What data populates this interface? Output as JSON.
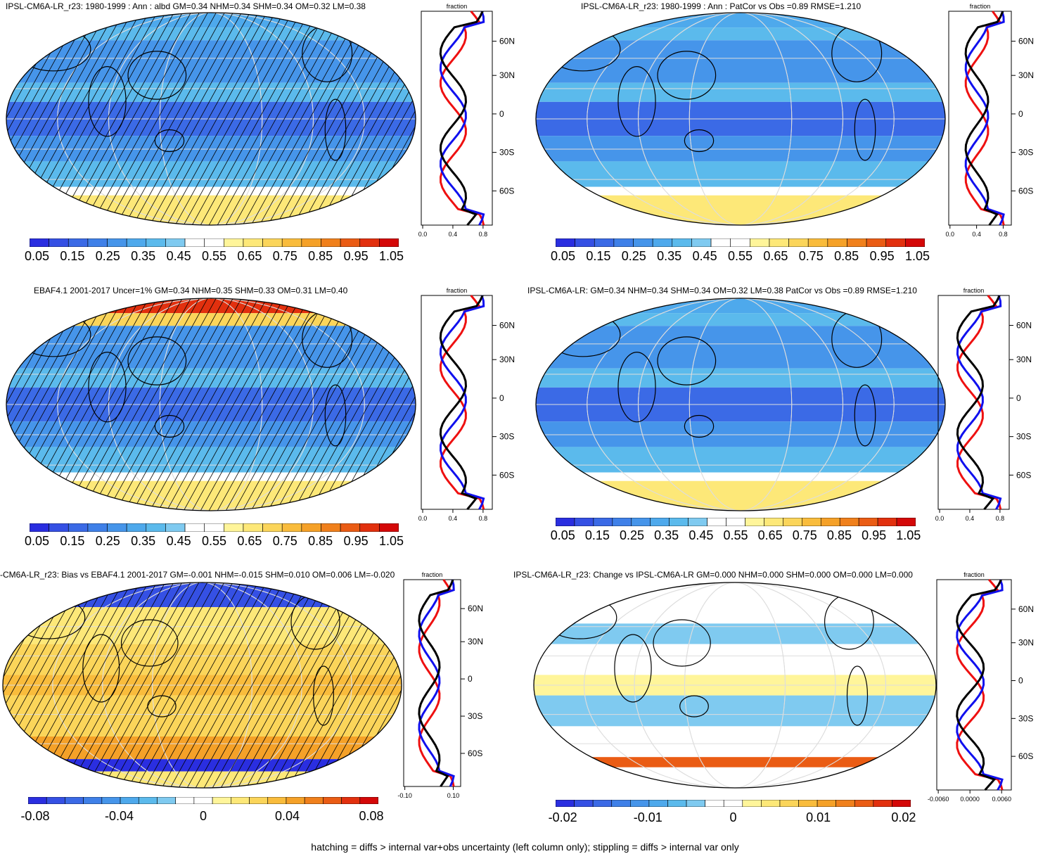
{
  "palette_abs": [
    "#2a2ee0",
    "#3550e4",
    "#3b6ae6",
    "#3f80e8",
    "#4695ea",
    "#4ea9ec",
    "#5bbaec",
    "#7fcaf0",
    "#ffffff",
    "#ffffff",
    "#fff59a",
    "#fde878",
    "#fbd55a",
    "#f9bc3c",
    "#f5a128",
    "#f0801c",
    "#ea5c14",
    "#e2300e",
    "#d40808"
  ],
  "palette_diff": [
    "#2a2ee0",
    "#3550e4",
    "#3b6ae6",
    "#3f80e8",
    "#4695ea",
    "#4ea9ec",
    "#5bbaec",
    "#7fcaf0",
    "#ffffff",
    "#ffffff",
    "#fff59a",
    "#fde878",
    "#fbd55a",
    "#f9bc3c",
    "#f5a128",
    "#f0801c",
    "#ea5c14",
    "#e2300e",
    "#d40808"
  ],
  "profile_colors": {
    "obs": "#000000",
    "model": "#1010ee",
    "other": "#ee1010"
  },
  "profile_axis_title": "fraction",
  "lat_labels": [
    "60N",
    "30N",
    "0",
    "30S",
    "60S"
  ],
  "panels": [
    {
      "id": "p1",
      "title": "IPSL-CM6A-LR_r23: 1980-1999 : Ann : albd GM=0.34 NHM=0.34 SHM=0.34 OM=0.32 LM=0.38",
      "cbar_labels": [
        "0.05",
        "0.15",
        "0.25",
        "0.35",
        "0.45",
        "0.55",
        "0.65",
        "0.75",
        "0.85",
        "0.95",
        "1.05"
      ],
      "x_ticks": [
        "0.0",
        "0.4",
        "0.8"
      ],
      "hatched": true,
      "kind": "abs"
    },
    {
      "id": "p2",
      "title": "IPSL-CM6A-LR_r23: 1980-1999 : Ann : PatCor vs Obs =0.89 RMSE=1.210",
      "cbar_labels": [
        "0.05",
        "0.15",
        "0.25",
        "0.35",
        "0.45",
        "0.55",
        "0.65",
        "0.75",
        "0.85",
        "0.95",
        "1.05"
      ],
      "x_ticks": [
        "0.0",
        "0.4",
        "0.8"
      ],
      "hatched": false,
      "kind": "abs"
    },
    {
      "id": "p3",
      "title": "EBAF4.1 2001-2017 Uncer=1% GM=0.34 NHM=0.35 SHM=0.33 OM=0.31 LM=0.40",
      "cbar_labels": [
        "0.05",
        "0.15",
        "0.25",
        "0.35",
        "0.45",
        "0.55",
        "0.65",
        "0.75",
        "0.85",
        "0.95",
        "1.05"
      ],
      "x_ticks": [
        "0.0",
        "0.4",
        "0.8"
      ],
      "hatched": true,
      "kind": "obs"
    },
    {
      "id": "p4",
      "title": "IPSL-CM6A-LR: GM=0.34 NHM=0.34 SHM=0.34 OM=0.32 LM=0.38 PatCor vs Obs =0.89 RMSE=1.210",
      "cbar_labels": [
        "0.05",
        "0.15",
        "0.25",
        "0.35",
        "0.45",
        "0.55",
        "0.65",
        "0.75",
        "0.85",
        "0.95",
        "1.05"
      ],
      "x_ticks": [
        "0.0",
        "0.4",
        "0.8"
      ],
      "hatched": false,
      "kind": "abs"
    },
    {
      "id": "p5",
      "title": "-CM6A-LR_r23: Bias vs EBAF4.1 2001-2017 GM=-0.001 NHM=-0.015 SHM=0.010 OM=0.006 LM=-0.020",
      "cbar_labels": [
        "-0.08",
        "-0.04",
        "0",
        "0.04",
        "0.08"
      ],
      "x_ticks": [
        "-0.10",
        "0.10"
      ],
      "hatched": true,
      "kind": "bias"
    },
    {
      "id": "p6",
      "title": "IPSL-CM6A-LR_r23: Change vs IPSL-CM6A-LR GM=0.000 NHM=0.000 SHM=0.000 OM=0.000 LM=0.000",
      "cbar_labels": [
        "-0.02",
        "-0.01",
        "0",
        "0.01",
        "0.02"
      ],
      "x_ticks": [
        "-0.0060",
        "0.0000",
        "0.0060"
      ],
      "hatched": false,
      "kind": "change"
    }
  ],
  "footer": "hatching = diffs > internal var+obs uncertainty (left column only); stippling = diffs > internal var only"
}
